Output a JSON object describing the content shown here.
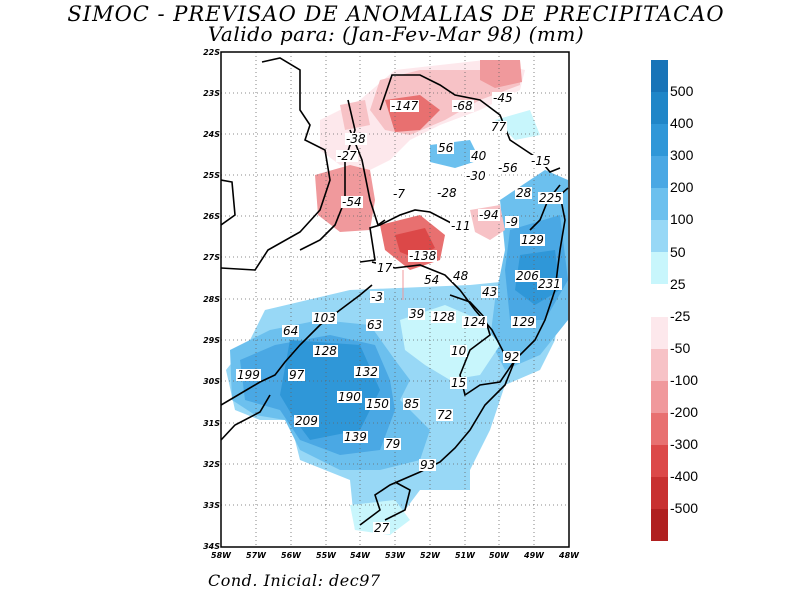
{
  "title": "SIMOC - PREVISAO DE ANOMALIAS DE PRECIPITACAO",
  "subtitle": "Valido para: (Jan-Fev-Mar 98) (mm)",
  "footer": "Cond. Inicial: dec97",
  "lat_labels": [
    "22S",
    "23S",
    "24S",
    "25S",
    "26S",
    "27S",
    "28S",
    "29S",
    "30S",
    "31S",
    "32S",
    "33S",
    "34S"
  ],
  "lon_labels": [
    "58W",
    "57W",
    "56W",
    "55W",
    "54W",
    "53W",
    "52W",
    "51W",
    "50W",
    "49W",
    "48W"
  ],
  "colorbar_positive": [
    {
      "label": "500",
      "color": "#1874b8"
    },
    {
      "label": "400",
      "color": "#1f86c8"
    },
    {
      "label": "300",
      "color": "#2f97d8"
    },
    {
      "label": "200",
      "color": "#4aa8e4"
    },
    {
      "label": "100",
      "color": "#6cc0ee"
    },
    {
      "label": "50",
      "color": "#98d8f6"
    },
    {
      "label": "25",
      "color": "#c8f6fc"
    }
  ],
  "colorbar_negative": [
    {
      "label": "-25",
      "color": "#fde8ec"
    },
    {
      "label": "-50",
      "color": "#f7c2c6"
    },
    {
      "label": "-100",
      "color": "#f0999c"
    },
    {
      "label": "-200",
      "color": "#e87070"
    },
    {
      "label": "-300",
      "color": "#dc4848"
    },
    {
      "label": "-400",
      "color": "#c83030"
    },
    {
      "label": "-500",
      "color": "#b02020"
    }
  ],
  "annotations": [
    "-147",
    "-68",
    "-45",
    "77",
    "-38",
    "-27",
    "56",
    "40",
    "-56",
    "-15",
    "-30",
    "28",
    "225",
    "-54",
    "-7",
    "-28",
    "-94",
    "-9",
    "-11",
    "129",
    "-138",
    "17",
    "54",
    "48",
    "206",
    "231",
    "-3",
    "43",
    "64",
    "103",
    "63",
    "39",
    "128",
    "124",
    "129",
    "128",
    "10",
    "92",
    "199",
    "97",
    "132",
    "15",
    "190",
    "150",
    "85",
    "209",
    "72",
    "139",
    "79",
    "93",
    "27"
  ]
}
